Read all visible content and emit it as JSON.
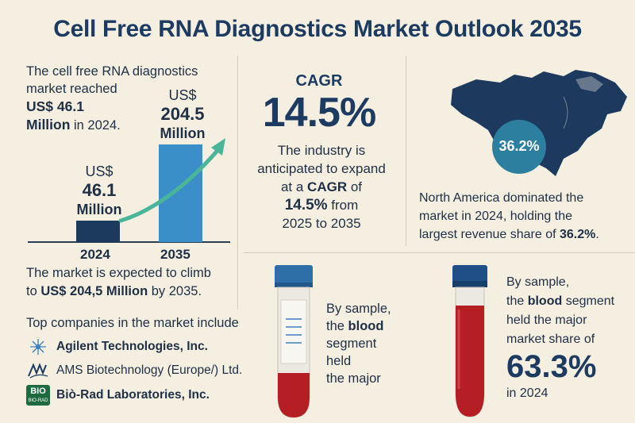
{
  "title": "Cell Free RNA Diagnostics Market Outlook 2035",
  "market": {
    "intro_line1": "The cell free RNA diagnostics",
    "intro_line2": "market reached",
    "intro_value": "US$ 46.1",
    "intro_value2": "Million",
    "intro_year": "in 2024.",
    "bar_2024": {
      "currency": "US$",
      "value": "46.1",
      "unit": "Million",
      "year": "2024",
      "color": "#1c3a5c"
    },
    "bar_2035": {
      "currency": "US$",
      "value": "204.5",
      "unit": "Million",
      "year": "2035",
      "color": "#3a8fc8"
    },
    "arrow_color": "#4bb59a",
    "outro_line1": "The market is expected to climb",
    "outro_to": "to",
    "outro_value": "US$ 204,5 Million",
    "outro_year": "by 2035."
  },
  "companies": {
    "heading": "Top companies in the market include",
    "items": [
      {
        "name": "Agilent Technologies, Inc.",
        "icon": "agilent-spark-icon"
      },
      {
        "name": "AMS Biotechnology (Europe/) Ltd.",
        "icon": "ams-logo-icon"
      },
      {
        "name": "Biò-Rad Laboratories, Inc.",
        "icon": "biorad-logo-icon",
        "logo_text": "BIO",
        "logo_small": "BIO-RAD"
      }
    ]
  },
  "cagr": {
    "label": "CAGR",
    "value": "14.5%",
    "desc_line1": "The industry is",
    "desc_line2": "anticipated to expand",
    "desc_line3_pre": "at a",
    "desc_line3_bold": "CAGR",
    "desc_line3_post": "of",
    "desc_line4_bold": "14.5%",
    "desc_line4_post": "from",
    "desc_line5": "2025 to 2035"
  },
  "north_america": {
    "badge": "36.2%",
    "line1": "North America dominated the",
    "line2": "market in 2024, holding the",
    "line3_pre": "largest revenue share of",
    "line3_bold": "36.2%",
    "line3_post": ".",
    "map_color": "#1d3a5e",
    "badge_color": "#2d7fa0"
  },
  "tube_left": {
    "line1": "By sample,",
    "line2_pre": "the",
    "line2_bold": "blood",
    "line3": "segment",
    "line4": "held",
    "line5": "the major",
    "cap_color": "#2f6fa8",
    "blood_color": "#b51e22"
  },
  "tube_right": {
    "line1": "By sample,",
    "line2_pre": "the",
    "line2_bold": "blood",
    "line2_post": "segment",
    "line3": "held the major",
    "line4": "market share of",
    "value": "63.3%",
    "year": "in 2024",
    "cap_color": "#1f4f86",
    "blood_color": "#b51e22"
  }
}
